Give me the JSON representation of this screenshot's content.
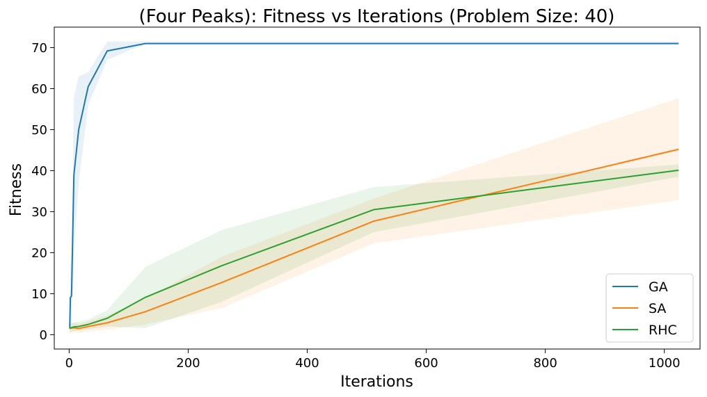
{
  "chart_data": {
    "type": "line",
    "title": "(Four Peaks): Fitness vs Iterations (Problem Size: 40)",
    "xlabel": "Iterations",
    "ylabel": "Fitness",
    "xlim": [
      -25,
      1060
    ],
    "ylim": [
      -3.5,
      75
    ],
    "xticks": [
      0,
      200,
      400,
      600,
      800,
      1000
    ],
    "yticks": [
      0,
      10,
      20,
      30,
      40,
      50,
      60,
      70
    ],
    "grid": false,
    "legend_position": "bottom-right",
    "series": [
      {
        "name": "GA",
        "color": "#1f77b4",
        "x": [
          1,
          2,
          4,
          8,
          16,
          32,
          64,
          128,
          256,
          512,
          1024
        ],
        "y": [
          1.5,
          9,
          9.5,
          39,
          50,
          60.5,
          69.2,
          71,
          71,
          71,
          71
        ],
        "lower": [
          0.5,
          2,
          3,
          20,
          37,
          56,
          67,
          71,
          71,
          71,
          71
        ],
        "upper": [
          3,
          17,
          20,
          58,
          63,
          64,
          71.5,
          71.5,
          71.5,
          71.5,
          71.5
        ]
      },
      {
        "name": "SA",
        "color": "#ff7f0e",
        "x": [
          1,
          2,
          4,
          8,
          16,
          32,
          64,
          128,
          256,
          512,
          1024
        ],
        "y": [
          1.5,
          1.6,
          1.6,
          1.7,
          1.5,
          2.0,
          2.9,
          5.6,
          12.7,
          27.7,
          45.2
        ],
        "lower": [
          0.5,
          0.5,
          0.6,
          0.6,
          0.5,
          0.8,
          1.2,
          2.5,
          6.5,
          22.3,
          32.8
        ],
        "upper": [
          2.5,
          2.6,
          2.7,
          2.8,
          2.6,
          3.3,
          4.7,
          8.8,
          19.0,
          33.2,
          57.7
        ]
      },
      {
        "name": "RHC",
        "color": "#2ca02c",
        "x": [
          1,
          2,
          4,
          8,
          16,
          32,
          64,
          128,
          256,
          512,
          1024
        ],
        "y": [
          1.5,
          1.6,
          1.7,
          1.9,
          2.0,
          2.5,
          4.0,
          9.1,
          16.8,
          30.5,
          40.1
        ],
        "lower": [
          0.7,
          0.7,
          0.8,
          0.9,
          1.0,
          1.3,
          2.0,
          1.6,
          8.0,
          25.0,
          38.5
        ],
        "upper": [
          2.5,
          2.6,
          2.8,
          3.0,
          3.2,
          3.7,
          6.0,
          16.5,
          25.5,
          36.0,
          41.5
        ]
      }
    ]
  }
}
